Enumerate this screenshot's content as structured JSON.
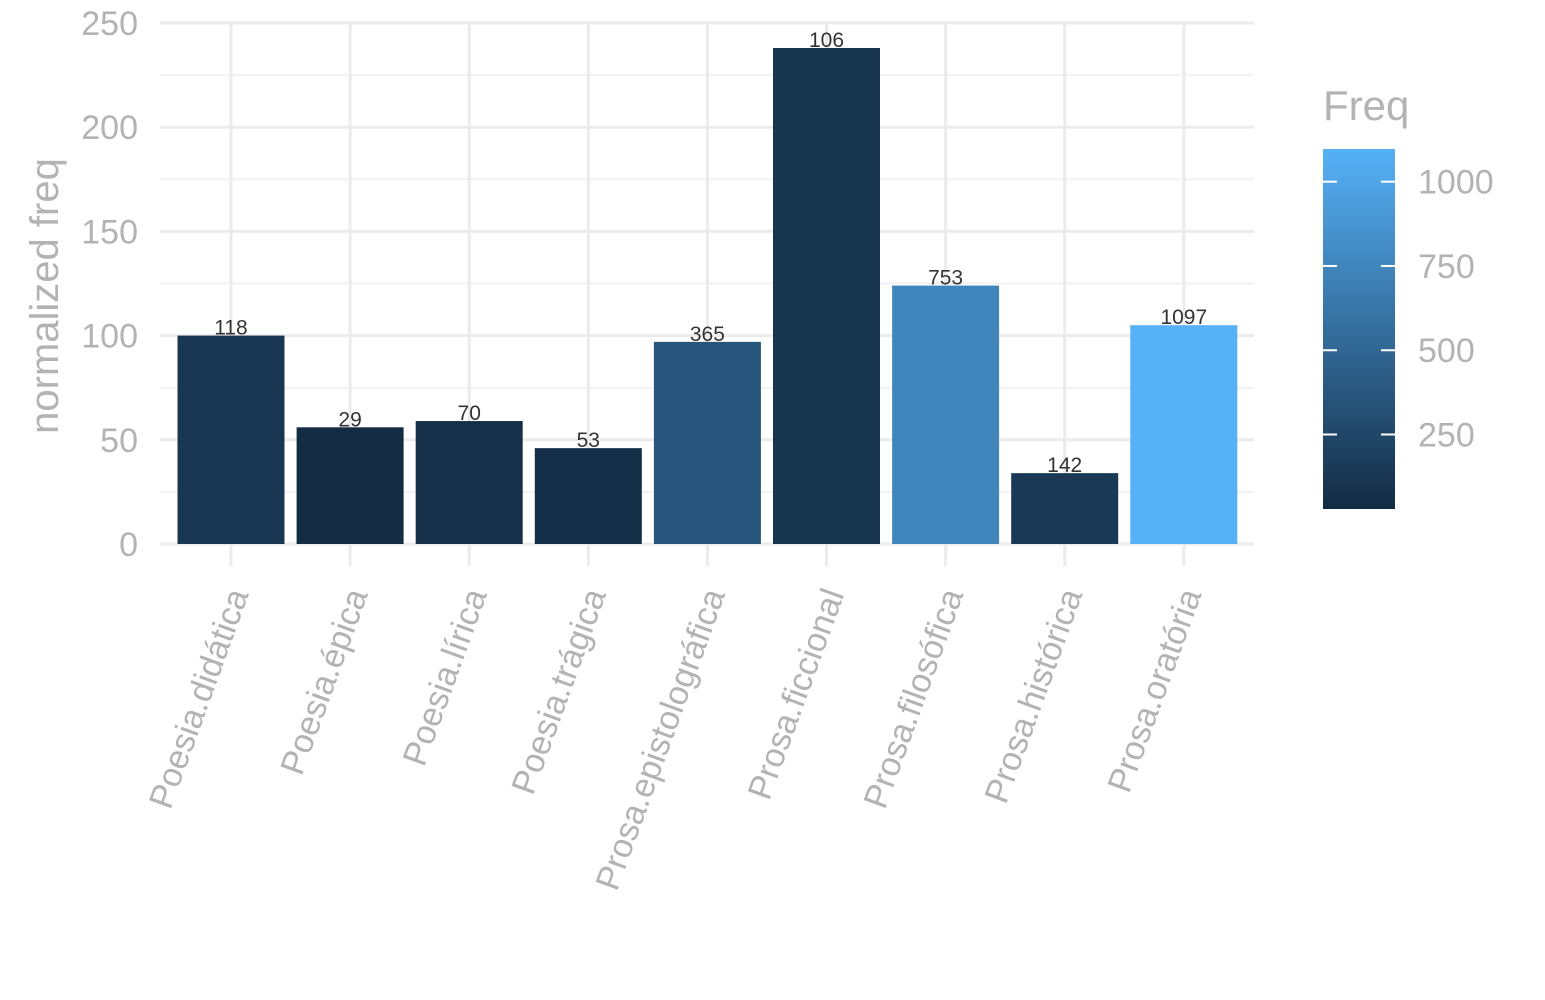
{
  "chart_data": {
    "type": "bar",
    "categories": [
      "Poesia.didática",
      "Poesia.épica",
      "Poesia.lírica",
      "Poesia.trágica",
      "Prosa.epistolográfica",
      "Prosa.ficcional",
      "Prosa.filosófica",
      "Prosa.histórica",
      "Prosa.oratória"
    ],
    "values": [
      100,
      56,
      59,
      46,
      97,
      238,
      124,
      34,
      105
    ],
    "labels": [
      "118",
      "29",
      "70",
      "53",
      "365",
      "106",
      "753",
      "142",
      "1097"
    ],
    "fill_values": [
      118,
      29,
      70,
      53,
      365,
      106,
      753,
      142,
      1097
    ],
    "ylabel": "normalized freq",
    "xlabel": "",
    "ylim": [
      0,
      250
    ],
    "yticks": [
      0,
      50,
      100,
      150,
      200,
      250
    ],
    "grid": true,
    "legend": {
      "title": "Freq",
      "position": "right",
      "ticks": [
        250,
        500,
        750,
        1000
      ],
      "range": [
        29,
        1097
      ],
      "low_color": "#132B43",
      "high_color": "#56B1F7"
    }
  }
}
